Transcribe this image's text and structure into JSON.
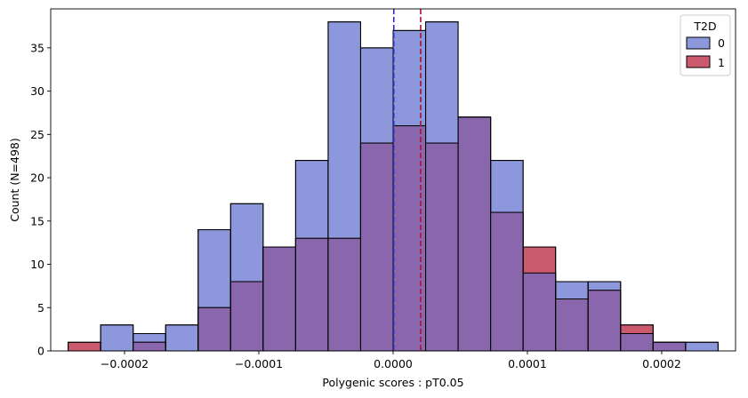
{
  "chart_data": {
    "type": "histogram",
    "xlabel": "Polygenic scores : pT0.05",
    "ylabel": "Count (N=498)",
    "xlim": [
      -0.000255,
      0.000255
    ],
    "ylim": [
      0,
      39.5
    ],
    "bin_start": -0.000242,
    "bin_width": 2.42e-05,
    "xticks": [
      -0.0002,
      -0.0001,
      0.0,
      0.0001,
      0.0002
    ],
    "xtick_labels": [
      "−0.0002",
      "−0.0001",
      "0.0000",
      "0.0001",
      "0.0002"
    ],
    "yticks": [
      0,
      5,
      10,
      15,
      20,
      25,
      30,
      35
    ],
    "ytick_labels": [
      "0",
      "5",
      "10",
      "15",
      "20",
      "25",
      "30",
      "35"
    ],
    "legend": {
      "title": "T2D",
      "position": "top-right"
    },
    "series": [
      {
        "name": "0",
        "color": "#8c97dc",
        "counts": [
          0,
          3,
          2,
          3,
          14,
          17,
          12,
          22,
          38,
          35,
          37,
          38,
          27,
          22,
          9,
          8,
          8,
          2,
          1,
          1
        ],
        "mean_line": 5e-07,
        "mean_line_color": "#3030c0"
      },
      {
        "name": "1",
        "color": "#cc5a6e",
        "counts": [
          1,
          0,
          1,
          0,
          5,
          8,
          12,
          13,
          13,
          24,
          26,
          24,
          27,
          16,
          12,
          6,
          7,
          3,
          1,
          0
        ],
        "mean_line": 2.05e-05,
        "mean_line_color": "#b01030"
      }
    ],
    "overlap_color": "#8a66ac"
  }
}
